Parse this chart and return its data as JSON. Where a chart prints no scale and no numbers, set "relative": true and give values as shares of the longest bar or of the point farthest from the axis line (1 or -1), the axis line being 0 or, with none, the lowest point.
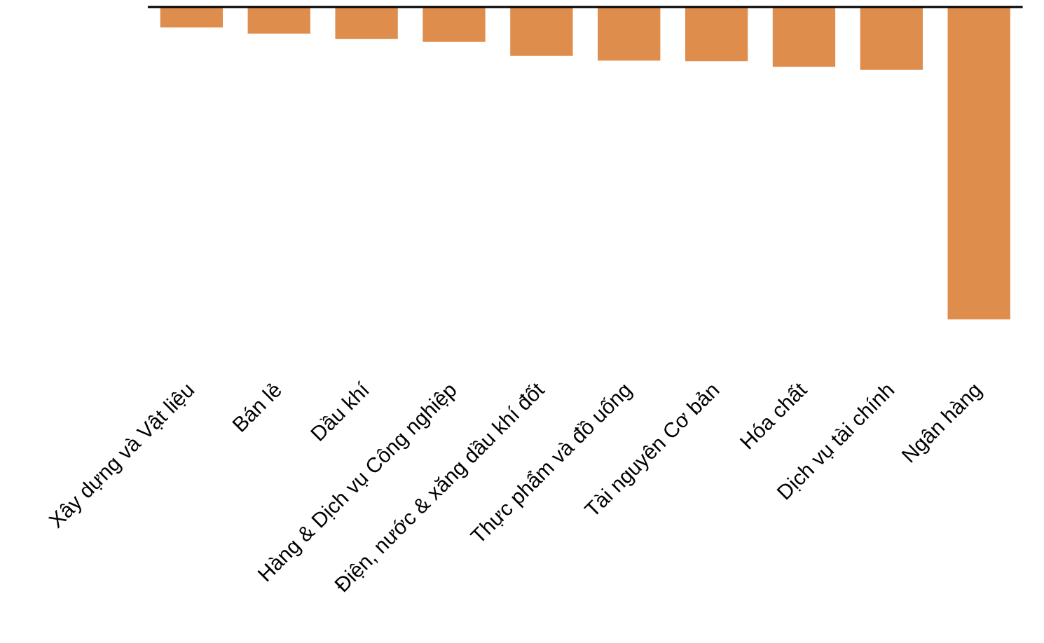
{
  "chart_data": {
    "type": "bar",
    "relative": true,
    "categories": [
      "Xây dựng và Vật liệu",
      "Bán lẻ",
      "Dầu khí",
      "Hàng & Dịch vụ Công nghiệp",
      "Điện, nước & xăng dầu khí đốt",
      "Thực phẩm và đồ uống",
      "Tài nguyên Cơ bản",
      "Hóa chất",
      "Dịch vụ tài chính",
      "Ngân hàng"
    ],
    "values": [
      -0.064,
      -0.084,
      -0.101,
      -0.11,
      -0.155,
      -0.17,
      -0.172,
      -0.19,
      -0.2,
      -1
    ],
    "color": "#de8d4c",
    "grid": false,
    "legend": false
  }
}
